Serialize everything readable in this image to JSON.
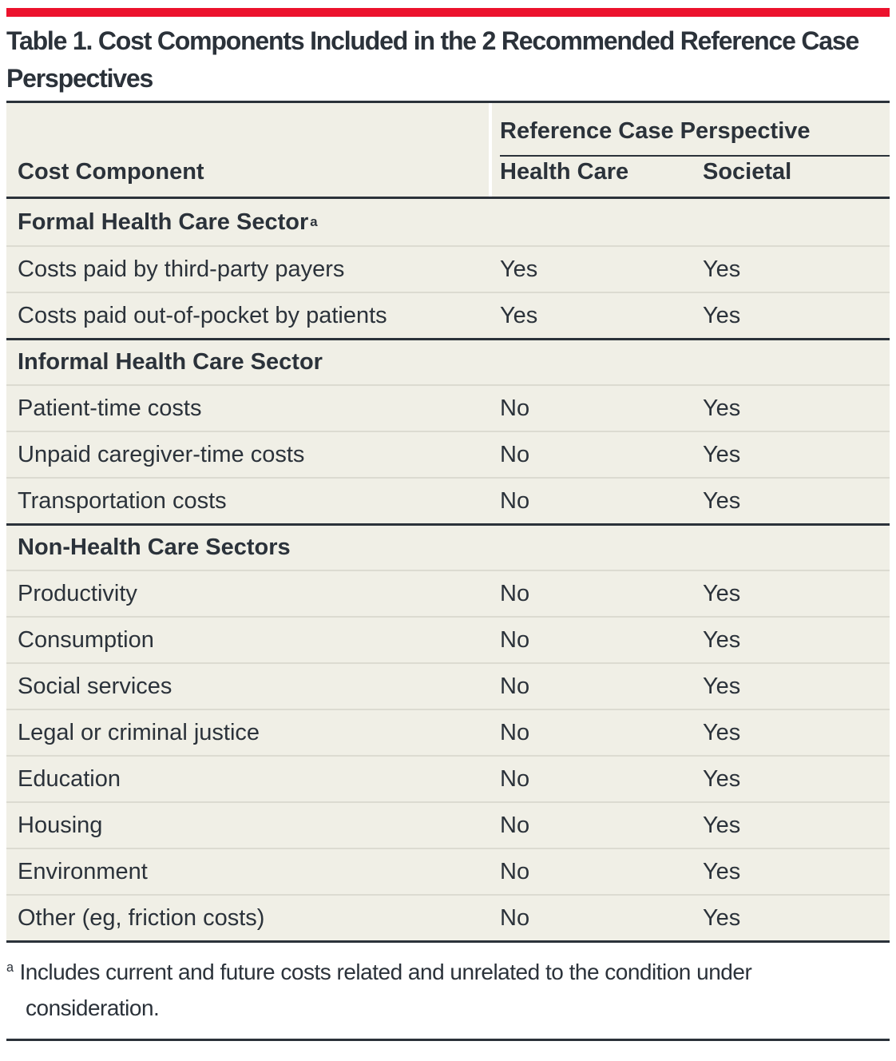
{
  "colors": {
    "accent": "#ec122d",
    "ink": "#2b323a",
    "paper": "#f0efe6",
    "hairline": "#dcdbd1",
    "page_bg": "#ffffff"
  },
  "title": "Table 1. Cost Components Included in the 2 Recommended Reference Case Perspectives",
  "table": {
    "col1_header": "Cost Component",
    "group_header": "Reference Case Perspective",
    "col_headers": [
      "Health Care",
      "Societal"
    ],
    "sections": [
      {
        "label": "Formal Health Care Sector",
        "footnote_marker": "a",
        "rows": [
          [
            "Costs paid by third-party payers",
            "Yes",
            "Yes"
          ],
          [
            "Costs paid out-of-pocket by patients",
            "Yes",
            "Yes"
          ]
        ]
      },
      {
        "label": "Informal Health Care Sector",
        "footnote_marker": "",
        "rows": [
          [
            "Patient-time costs",
            "No",
            "Yes"
          ],
          [
            "Unpaid caregiver-time costs",
            "No",
            "Yes"
          ],
          [
            "Transportation costs",
            "No",
            "Yes"
          ]
        ]
      },
      {
        "label": "Non-Health Care Sectors",
        "footnote_marker": "",
        "rows": [
          [
            "Productivity",
            "No",
            "Yes"
          ],
          [
            "Consumption",
            "No",
            "Yes"
          ],
          [
            "Social services",
            "No",
            "Yes"
          ],
          [
            "Legal or criminal justice",
            "No",
            "Yes"
          ],
          [
            "Education",
            "No",
            "Yes"
          ],
          [
            "Housing",
            "No",
            "Yes"
          ],
          [
            "Environment",
            "No",
            "Yes"
          ],
          [
            "Other (eg, friction costs)",
            "No",
            "Yes"
          ]
        ]
      }
    ],
    "footnote": {
      "marker": "a",
      "text": "Includes current and future costs related and unrelated to the condition under consideration."
    }
  }
}
